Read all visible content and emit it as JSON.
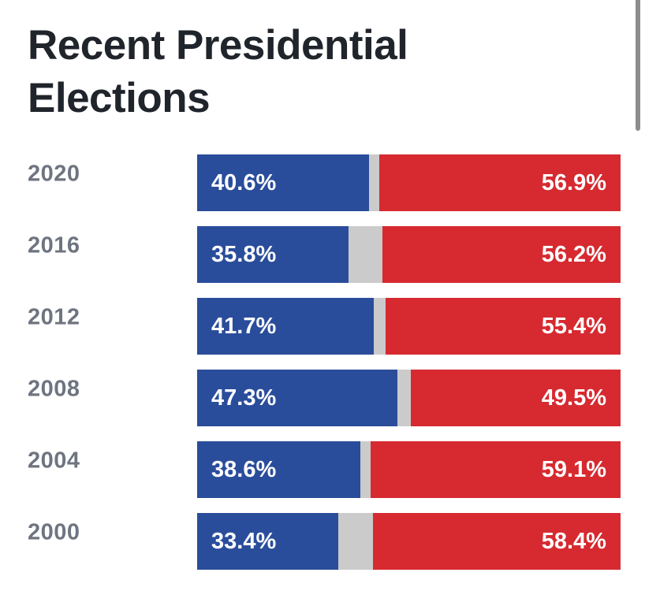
{
  "header": {
    "title": "Recent Presidential Elections"
  },
  "colors": {
    "title_text": "#20242b",
    "year_label_text": "#6e7480",
    "value_label_text": "#ffffff",
    "scrollbar_thumb": "#8d8d8d",
    "background": "#ffffff"
  },
  "chart_data": {
    "type": "bar",
    "orientation": "horizontal",
    "stacked": true,
    "title": "Recent Presidential Elections",
    "categories": [
      "2020",
      "2016",
      "2012",
      "2008",
      "2004",
      "2000"
    ],
    "series": [
      {
        "name": "blue-segment",
        "color": "#2a4d9b",
        "values": [
          40.6,
          35.8,
          41.7,
          47.3,
          38.6,
          33.4
        ],
        "labels": [
          "40.6%",
          "35.8%",
          "41.7%",
          "47.3%",
          "38.6%",
          "33.4%"
        ]
      },
      {
        "name": "gray-segment",
        "color": "#cbcbcb",
        "values": [
          2.5,
          8.0,
          2.9,
          3.2,
          2.3,
          8.2
        ],
        "labels": [
          "",
          "",
          "",
          "",
          "",
          ""
        ]
      },
      {
        "name": "red-segment",
        "color": "#d62a30",
        "values": [
          56.9,
          56.2,
          55.4,
          49.5,
          59.1,
          58.4
        ],
        "labels": [
          "56.9%",
          "56.2%",
          "55.4%",
          "49.5%",
          "59.1%",
          "58.4%"
        ]
      }
    ],
    "axis_max": 100,
    "grid": false,
    "legend": false
  }
}
